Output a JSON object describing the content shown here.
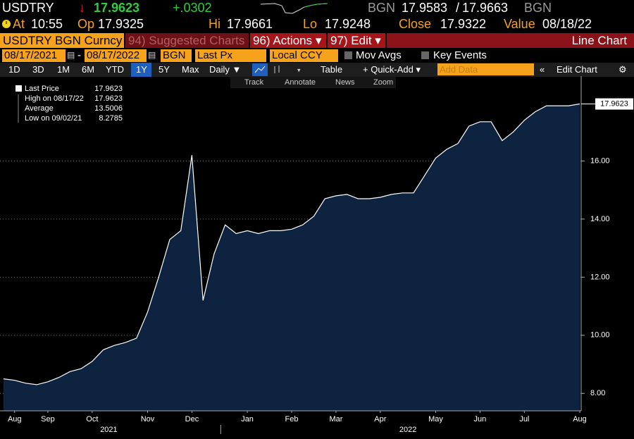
{
  "header": {
    "ticker": "USDTRY",
    "arrow": "↓",
    "last": "17.9623",
    "change": "+.0302",
    "source": "BGN",
    "bid": "17.9583",
    "separator": "/",
    "ask": "17.9663",
    "source2": "BGN",
    "at_label": "At",
    "time": "10:55",
    "open_label": "Op",
    "open": "17.9325",
    "high_label": "Hi",
    "high": "17.9661",
    "low_label": "Lo",
    "low": "17.9248",
    "close_label": "Close",
    "close": "17.9322",
    "value_label": "Value",
    "value_date": "08/18/22"
  },
  "toolbar": {
    "security": "USDTRY BGN Curncy",
    "suggested": "94) Suggested Charts",
    "actions": "96) Actions ▾",
    "edit": "97) Edit ▾",
    "chart_kind": "Line Chart",
    "start_date": "08/17/2021",
    "dash": "-",
    "end_date": "08/17/2022",
    "source": "BGN",
    "field": "Last Px",
    "currency": "Local CCY",
    "mov_avgs": "Mov Avgs",
    "key_events": "Key Events",
    "periods": [
      "1D",
      "3D",
      "1M",
      "6M",
      "YTD",
      "1Y",
      "5Y",
      "Max"
    ],
    "frequency": "Daily ▼",
    "table": "Table",
    "quick_add": "+ Quick-Add ▾",
    "add_data": "Add Data",
    "edit_chart": "Edit Chart",
    "tools": [
      "Track",
      "Annotate",
      "News",
      "Zoom"
    ]
  },
  "chart_data": {
    "type": "area",
    "categories": [
      null,
      "Aug",
      null,
      null,
      "Sep",
      null,
      null,
      null,
      "Oct",
      null,
      null,
      null,
      null,
      "Nov",
      null,
      null,
      null,
      "Dec",
      null,
      null,
      null,
      null,
      "Jan",
      null,
      null,
      null,
      "Feb",
      null,
      null,
      null,
      "Mar",
      null,
      null,
      null,
      "Apr",
      null,
      null,
      null,
      null,
      "May",
      null,
      null,
      null,
      "Jun",
      null,
      null,
      null,
      "Jul",
      null,
      null,
      null,
      null,
      "Aug"
    ],
    "years": [
      "2021",
      "2022"
    ],
    "series": [
      {
        "name": "Last Price",
        "color": "#ffffff",
        "values": [
          8.5,
          8.45,
          8.35,
          8.3,
          8.4,
          8.55,
          8.75,
          8.85,
          9.1,
          9.5,
          9.65,
          9.75,
          9.9,
          10.8,
          12.0,
          13.3,
          13.6,
          16.2,
          11.2,
          12.8,
          13.8,
          13.5,
          13.6,
          13.5,
          13.6,
          13.6,
          13.65,
          13.8,
          14.1,
          14.7,
          14.8,
          14.85,
          14.7,
          14.7,
          14.75,
          14.85,
          14.9,
          14.9,
          15.5,
          16.1,
          16.4,
          16.6,
          17.2,
          17.35,
          17.35,
          16.7,
          17.0,
          17.4,
          17.7,
          17.9,
          17.9,
          17.9,
          17.9623
        ]
      }
    ],
    "fill_color": "#0d2340",
    "last_value": 17.9623,
    "stats": [
      {
        "label": "High on 08/17/22",
        "value": 17.9623
      },
      {
        "label": "Average",
        "value": 13.5006
      },
      {
        "label": "Low on 09/02/21",
        "value": 8.2785
      }
    ],
    "ylim": [
      7.4,
      18.8
    ],
    "yticks": [
      {
        "value": 8,
        "label": "8.00"
      },
      {
        "value": 10,
        "label": "10.00"
      },
      {
        "value": 12,
        "label": "12.00"
      },
      {
        "value": 14,
        "label": "14.00"
      },
      {
        "value": 16,
        "label": "16.00"
      }
    ],
    "grid": true
  }
}
